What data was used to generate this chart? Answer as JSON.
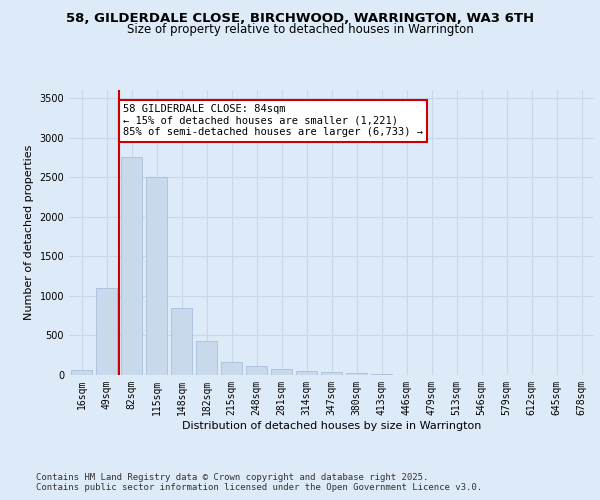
{
  "title_line1": "58, GILDERDALE CLOSE, BIRCHWOOD, WARRINGTON, WA3 6TH",
  "title_line2": "Size of property relative to detached houses in Warrington",
  "xlabel": "Distribution of detached houses by size in Warrington",
  "ylabel": "Number of detached properties",
  "categories": [
    "16sqm",
    "49sqm",
    "82sqm",
    "115sqm",
    "148sqm",
    "182sqm",
    "215sqm",
    "248sqm",
    "281sqm",
    "314sqm",
    "347sqm",
    "380sqm",
    "413sqm",
    "446sqm",
    "479sqm",
    "513sqm",
    "546sqm",
    "579sqm",
    "612sqm",
    "645sqm",
    "678sqm"
  ],
  "values": [
    60,
    1100,
    2750,
    2500,
    850,
    430,
    170,
    115,
    80,
    50,
    35,
    20,
    10,
    5,
    3,
    2,
    1,
    1,
    0,
    0,
    0
  ],
  "bar_color": "#c9d9ec",
  "bar_edgecolor": "#a0b8d8",
  "grid_color": "#c8d8e8",
  "background_color": "#ddeaf7",
  "vline_color": "#cc0000",
  "annotation_text": "58 GILDERDALE CLOSE: 84sqm\n← 15% of detached houses are smaller (1,221)\n85% of semi-detached houses are larger (6,733) →",
  "annotation_box_color": "#cc0000",
  "ylim": [
    0,
    3600
  ],
  "yticks": [
    0,
    500,
    1000,
    1500,
    2000,
    2500,
    3000,
    3500
  ],
  "footer_line1": "Contains HM Land Registry data © Crown copyright and database right 2025.",
  "footer_line2": "Contains public sector information licensed under the Open Government Licence v3.0.",
  "title_fontsize": 9.5,
  "subtitle_fontsize": 8.5,
  "axis_label_fontsize": 8,
  "tick_fontsize": 7,
  "annotation_fontsize": 7.5,
  "footer_fontsize": 6.5
}
